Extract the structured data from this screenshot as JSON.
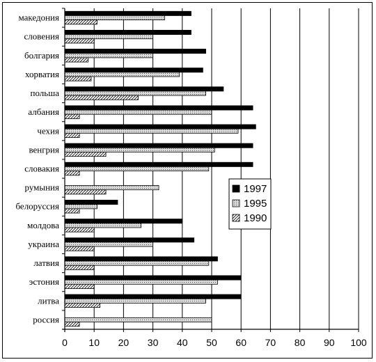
{
  "chart_data": {
    "type": "bar",
    "orientation": "horizontal",
    "categories": [
      "македония",
      "словения",
      "болгария",
      "хорватия",
      "польша",
      "албания",
      "чехия",
      "венгрия",
      "словакия",
      "румыния",
      "белоруссия",
      "молдова",
      "украина",
      "латвия",
      "эстония",
      "литва",
      "россия"
    ],
    "series": [
      {
        "name": "1997",
        "pattern": "solid",
        "color": "#000000",
        "values": [
          43,
          43,
          48,
          47,
          54,
          64,
          65,
          64,
          64,
          null,
          18,
          40,
          44,
          52,
          60,
          60,
          null
        ]
      },
      {
        "name": "1995",
        "pattern": "dotted-gray",
        "color": "#c0c0c0",
        "values": [
          34,
          30,
          30,
          39,
          48,
          50,
          59,
          51,
          49,
          32,
          11,
          26,
          30,
          49,
          52,
          48,
          50
        ]
      },
      {
        "name": "1990",
        "pattern": "diagonal-hatch",
        "color": "#ffffff",
        "values": [
          11,
          10,
          8,
          9,
          25,
          5,
          5,
          14,
          5,
          14,
          5,
          10,
          10,
          10,
          10,
          12,
          5
        ]
      }
    ],
    "xlim": [
      0,
      100
    ],
    "xticks": [
      "0",
      "10",
      "20",
      "30",
      "40",
      "50",
      "60",
      "70",
      "80",
      "90",
      "100"
    ],
    "grid": "vertical",
    "legend_position": "right-middle",
    "title": "",
    "xlabel": "",
    "ylabel": ""
  }
}
